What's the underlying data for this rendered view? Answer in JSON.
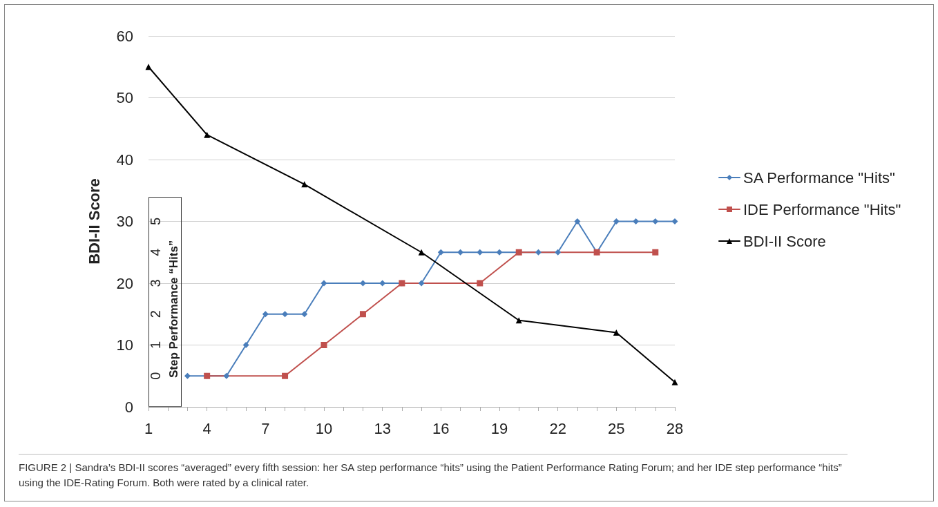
{
  "chart_data": {
    "type": "line",
    "ylabel": "BDI-II Score",
    "y2label": "Step Performance “Hits”",
    "xlim": [
      1,
      28
    ],
    "xticks": [
      1,
      {
        "value": 2,
        "label": null
      },
      {
        "value": 3,
        "label": null
      },
      4,
      {
        "value": 5,
        "label": null
      },
      {
        "value": 6,
        "label": null
      },
      7,
      {
        "value": 8,
        "label": null
      },
      {
        "value": 9,
        "label": null
      },
      10,
      {
        "value": 11,
        "label": null
      },
      {
        "value": 12,
        "label": null
      },
      13,
      {
        "value": 14,
        "label": null
      },
      {
        "value": 15,
        "label": null
      },
      16,
      {
        "value": 17,
        "label": null
      },
      {
        "value": 18,
        "label": null
      },
      19,
      {
        "value": 20,
        "label": null
      },
      {
        "value": 21,
        "label": null
      },
      22,
      {
        "value": 23,
        "label": null
      },
      {
        "value": 24,
        "label": null
      },
      25,
      {
        "value": 26,
        "label": null
      },
      {
        "value": 27,
        "label": null
      },
      28
    ],
    "ylim": [
      0,
      60
    ],
    "yticks": [
      0,
      10,
      20,
      30,
      40,
      50,
      60
    ],
    "y2lim": [
      -1,
      11
    ],
    "y2ticks": [
      0,
      1,
      2,
      3,
      4,
      5
    ],
    "grid": "y",
    "legend": "right",
    "line_style": "solid",
    "series": [
      {
        "name": "SA Performance \"Hits\"",
        "color": "#4a7ebb",
        "marker": "diamond",
        "axis": "y2",
        "x": [
          3,
          4,
          5,
          6,
          7,
          8,
          9,
          10,
          12,
          13,
          14,
          15,
          16,
          17,
          18,
          19,
          20,
          21,
          22,
          23,
          24,
          25,
          26,
          27,
          28
        ],
        "values": [
          0,
          0,
          0,
          1,
          2,
          2,
          2,
          3,
          3,
          3,
          3,
          3,
          4,
          4,
          4,
          4,
          4,
          4,
          4,
          5,
          4,
          5,
          5,
          5,
          5
        ]
      },
      {
        "name": "IDE Performance \"Hits\"",
        "color": "#c0504d",
        "marker": "square",
        "axis": "y2",
        "x": [
          4,
          8,
          10,
          12,
          14,
          18,
          20,
          24,
          27
        ],
        "values": [
          0,
          0,
          1,
          2,
          3,
          3,
          4,
          4,
          4
        ]
      },
      {
        "name": "BDI-II Score",
        "color": "#000000",
        "marker": "triangle",
        "x": [
          1,
          4,
          9,
          15,
          20,
          25,
          28
        ],
        "values": [
          55,
          44,
          36,
          25,
          14,
          12,
          4
        ]
      }
    ],
    "annotations": [
      "FIGURE 2 | Sandra’s BDI-II scores “averaged” every fifth session: her SA step performance “hits” using the Patient Performance Rating Forum; and her IDE step performance “hits” using the IDE-Rating Forum. Both were rated by a clinical rater."
    ]
  }
}
